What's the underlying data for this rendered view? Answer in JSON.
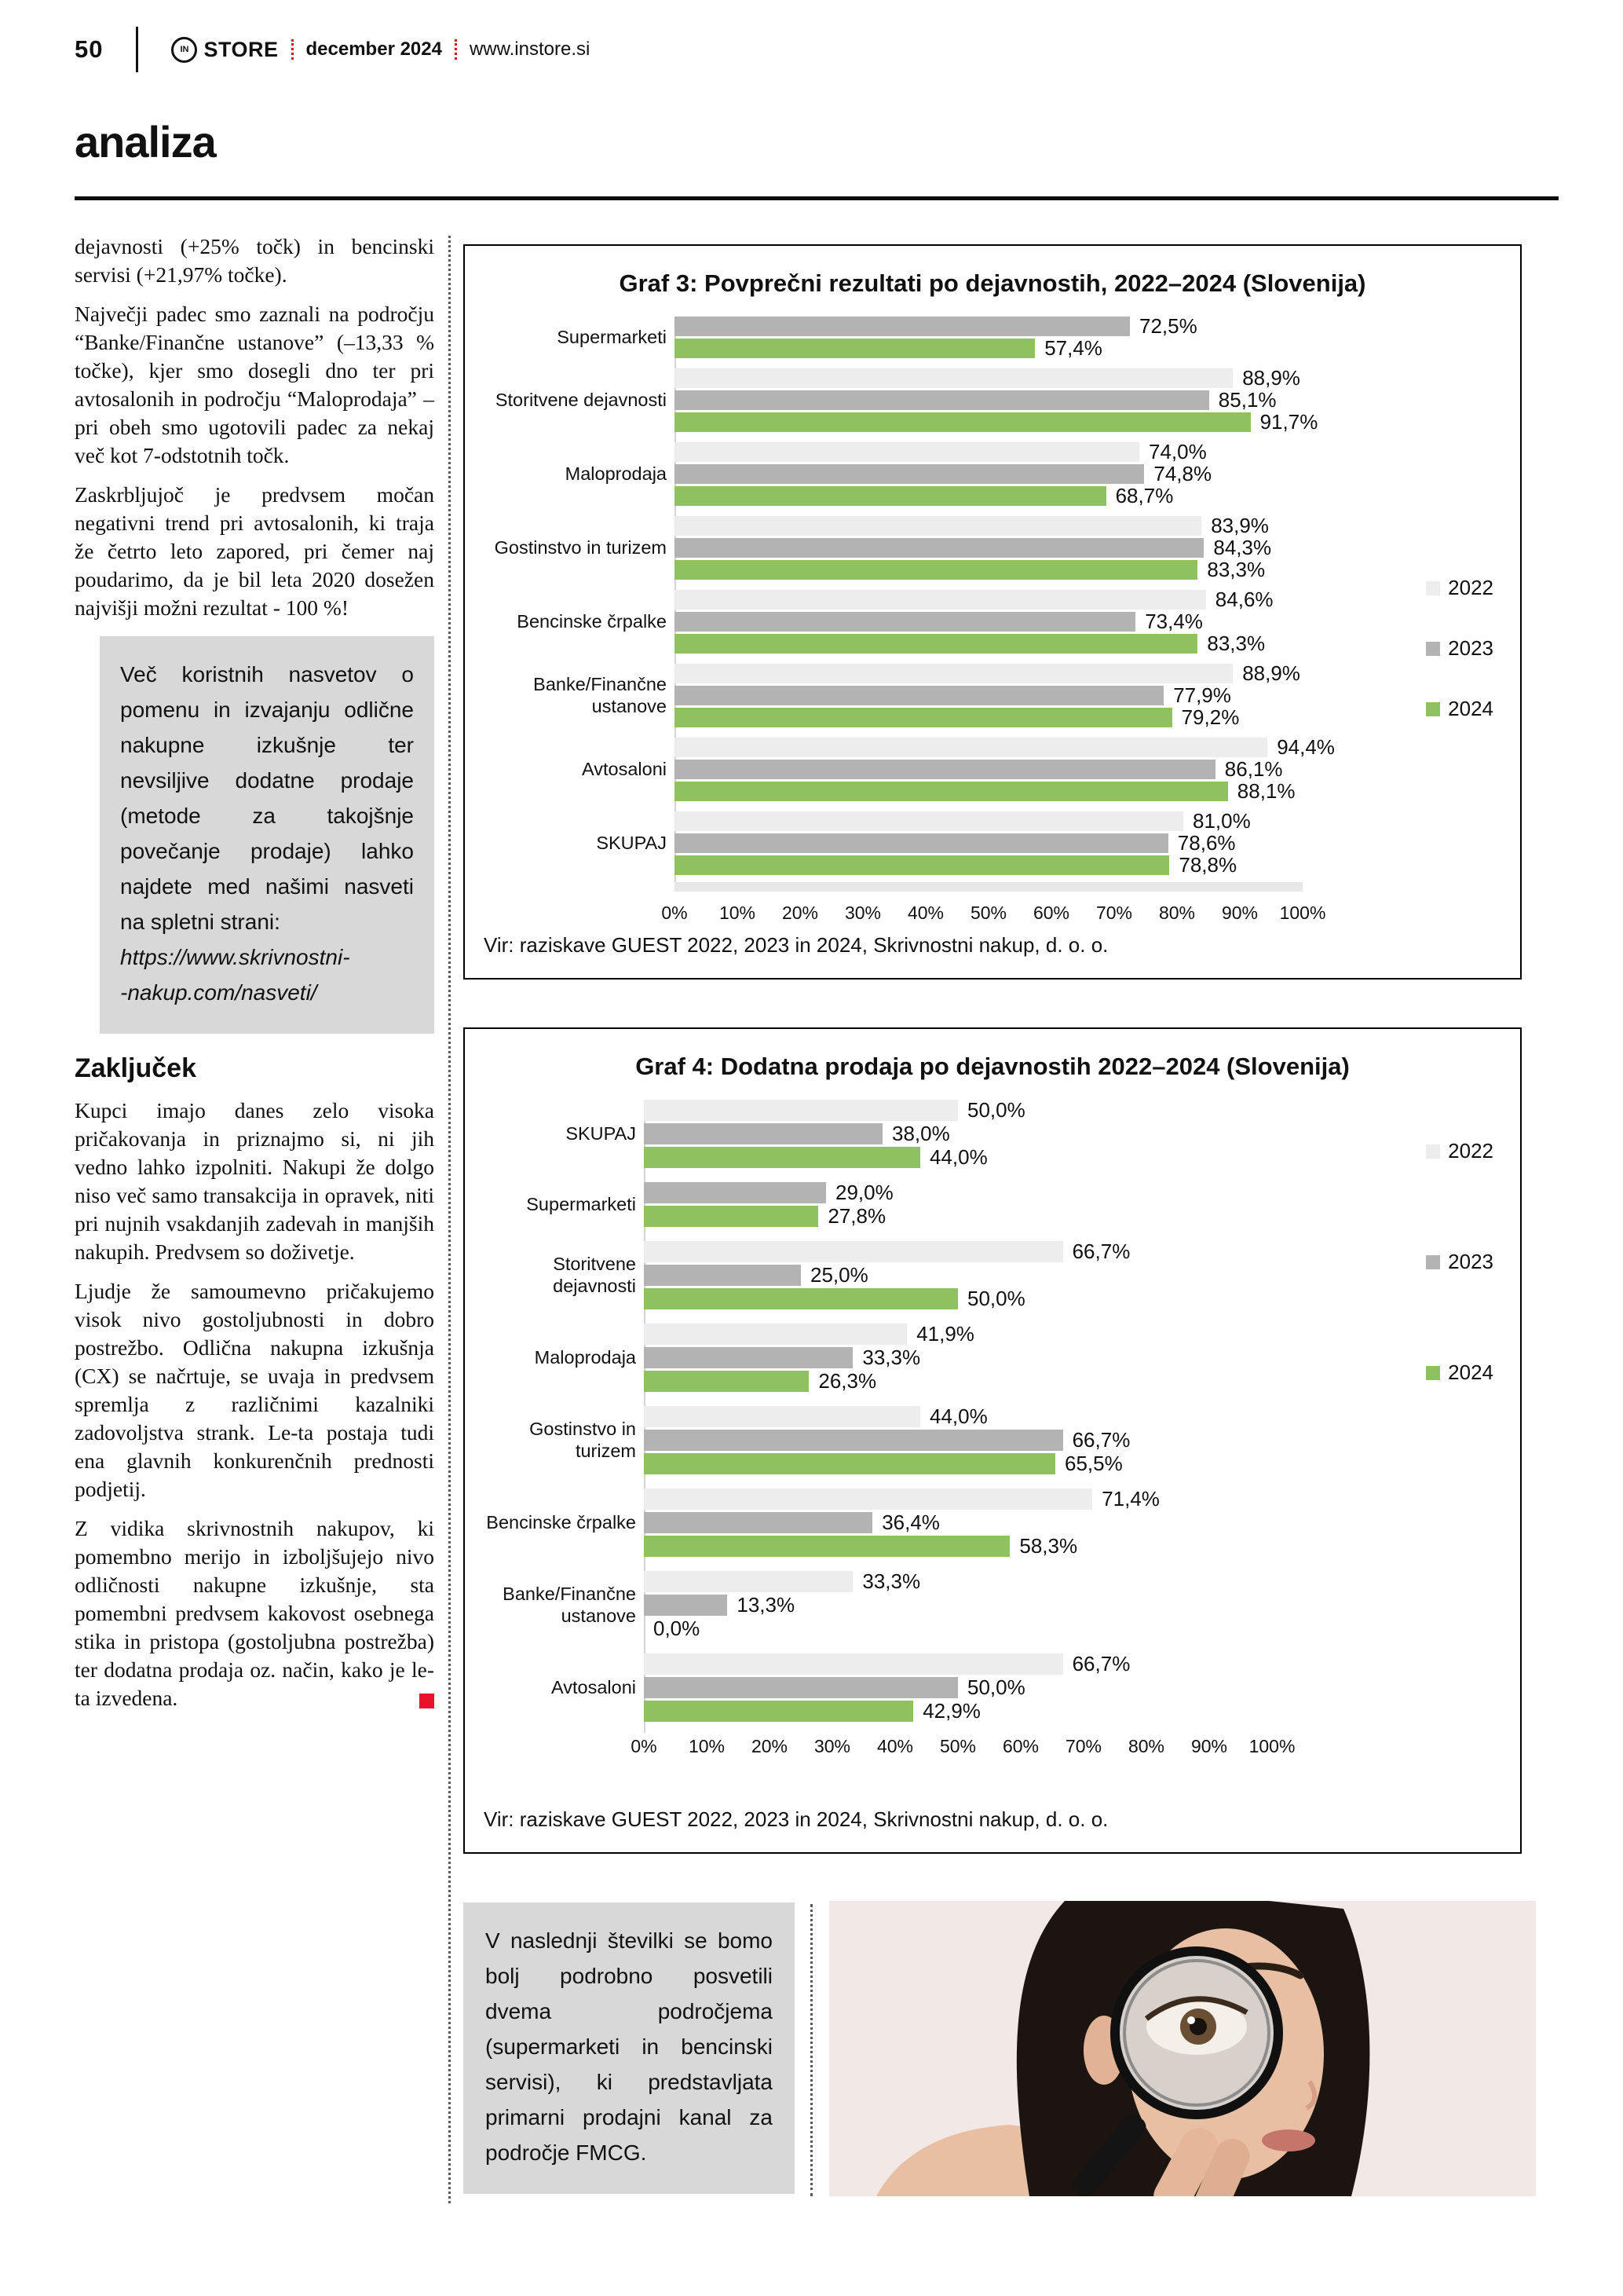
{
  "header": {
    "page_number": "50",
    "logo_monogram": "IN",
    "logo_text": "STORE",
    "issue": "december 2024",
    "website": "www.instore.si"
  },
  "section_title": "analiza",
  "article": {
    "paragraph_1": "dejavnosti (+25% točk) in bencinski servisi (+21,97% točke).",
    "paragraph_2": "Največji padec smo zaznali na področju “Banke/Finančne ustanove” (–13,33 % točke), kjer smo dosegli dno ter pri avtosalonih in področju “Maloprodaja” – pri obeh smo ugotovili padec za nekaj več kot 7-odstotnih točk.",
    "paragraph_3": "Zaskrbljujoč je predvsem močan negativni trend pri avtosalonih, ki traja že četrto leto zapored, pri čemer naj poudarimo, da je bil leta 2020 dosežen najvišji možni rezultat - 100 %!",
    "tip_box_text": "Več koristnih nasvetov o pomenu in izvajanju odlične nakupne izkušnje ter nevsiljive dodatne prodaje (metode za takojšnje povečanje prodaje) lahko najdete med našimi nasveti na spletni strani:",
    "tip_box_url_line1": "https://www.skrivnostni-",
    "tip_box_url_line2": "-nakup.com/nasveti/",
    "conclusion_heading": "Zaključek",
    "paragraph_4": "Kupci imajo danes zelo visoka pričakovanja in priznajmo si, ni jih vedno lahko izpolniti. Nakupi že dolgo niso več samo transakcija in opravek, niti pri nujnih vsakdanjih zadevah in manjših nakupih. Predvsem so doživetje.",
    "paragraph_5": "Ljudje že samoumevno pričakujemo visok nivo gostoljubnosti in dobro postrežbo. Odlična nakupna izkušnja (CX) se načrtuje, se uvaja in predvsem spremlja z različnimi kazalniki zadovoljstva strank. Le-ta postaja tudi ena glavnih konkurenčnih prednosti podjetij.",
    "paragraph_6": "Z vidika skrivnostnih nakupov, ki pomembno merijo in izboljšujejo nivo odličnosti nakupne izkušnje, sta pomembni predvsem kakovost osebnega stika in pristopa (gostoljubna postrežba) ter dodatna prodaja oz. način, kako je le-ta izvedena."
  },
  "next_issue_box": "V naslednji številki se bomo bolj podrobno posvetili dvema področjema (supermarketi in bencinski servisi), ki predstavljata primarni prodajni kanal za področje FMCG.",
  "colors": {
    "accent_red": "#e30613",
    "end_marker_red": "#e8132b",
    "bar_2022": "#ededed",
    "bar_2023": "#b3b3b3",
    "bar_2024": "#8fc25f",
    "tip_box_bg": "#d8d8d8"
  },
  "chart_data": [
    {
      "type": "bar",
      "orientation": "horizontal",
      "title": "Graf 3: Povprečni rezultati po dejavnostih, 2022–2024 (Slovenija)",
      "categories": [
        "Supermarketi",
        "Storitvene dejavnosti",
        "Maloprodaja",
        "Gostinstvo in turizem",
        "Bencinske črpalke",
        "Banke/Finančne ustanove",
        "Avtosaloni",
        "SKUPAJ"
      ],
      "series": [
        {
          "name": "2022",
          "color": "#ededed",
          "values": [
            null,
            88.9,
            74.0,
            83.9,
            84.6,
            88.9,
            94.4,
            81.0
          ],
          "labels": [
            "",
            "88,9%",
            "74,0%",
            "83,9%",
            "84,6%",
            "88,9%",
            "94,4%",
            "81,0%"
          ]
        },
        {
          "name": "2023",
          "color": "#b3b3b3",
          "values": [
            72.5,
            85.1,
            74.8,
            84.3,
            73.4,
            77.9,
            86.1,
            78.6
          ],
          "labels": [
            "72,5%",
            "85,1%",
            "74,8%",
            "84,3%",
            "73,4%",
            "77,9%",
            "86,1%",
            "78,6%"
          ]
        },
        {
          "name": "2024",
          "color": "#8fc25f",
          "values": [
            57.4,
            91.7,
            68.7,
            83.3,
            83.3,
            79.2,
            88.1,
            78.8
          ],
          "labels": [
            "57,4%",
            "91,7%",
            "68,7%",
            "83,3%",
            "83,3%",
            "79,2%",
            "88,1%",
            "78,8%"
          ]
        }
      ],
      "x_ticks": [
        "0%",
        "10%",
        "20%",
        "30%",
        "40%",
        "50%",
        "60%",
        "70%",
        "80%",
        "90%",
        "100%"
      ],
      "xlim": [
        0,
        100
      ],
      "grid": false,
      "legend_position": "right",
      "source": "Vir: raziskave GUEST 2022, 2023 in 2024, Skrivnostni nakup, d. o. o."
    },
    {
      "type": "bar",
      "orientation": "horizontal",
      "title": "Graf 4: Dodatna prodaja po dejavnostih 2022–2024 (Slovenija)",
      "categories": [
        "SKUPAJ",
        "Supermarketi",
        "Storitvene dejavnosti",
        "Maloprodaja",
        "Gostinstvo in turizem",
        "Bencinske črpalke",
        "Banke/Finančne\nustanove",
        "Avtosaloni"
      ],
      "series": [
        {
          "name": "2022",
          "color": "#ededed",
          "values": [
            50.0,
            null,
            66.7,
            41.9,
            44.0,
            71.4,
            33.3,
            66.7
          ],
          "labels": [
            "50,0%",
            "",
            "66,7%",
            "41,9%",
            "44,0%",
            "71,4%",
            "33,3%",
            "66,7%"
          ]
        },
        {
          "name": "2023",
          "color": "#b3b3b3",
          "values": [
            38.0,
            29.0,
            25.0,
            33.3,
            66.7,
            36.4,
            13.3,
            50.0
          ],
          "labels": [
            "38,0%",
            "29,0%",
            "25,0%",
            "33,3%",
            "66,7%",
            "36,4%",
            "13,3%",
            "50,0%"
          ]
        },
        {
          "name": "2024",
          "color": "#8fc25f",
          "values": [
            44.0,
            27.8,
            50.0,
            26.3,
            65.5,
            58.3,
            0.0,
            42.9
          ],
          "labels": [
            "44,0%",
            "27,8%",
            "50,0%",
            "26,3%",
            "65,5%",
            "58,3%",
            "0,0%",
            "42,9%"
          ]
        }
      ],
      "x_ticks": [
        "0%",
        "10%",
        "20%",
        "30%",
        "40%",
        "50%",
        "60%",
        "70%",
        "80%",
        "90%",
        "100%"
      ],
      "xlim": [
        0,
        100
      ],
      "grid": false,
      "legend_position": "right",
      "source": "Vir: raziskave GUEST 2022, 2023 in 2024, Skrivnostni nakup, d. o. o."
    }
  ]
}
